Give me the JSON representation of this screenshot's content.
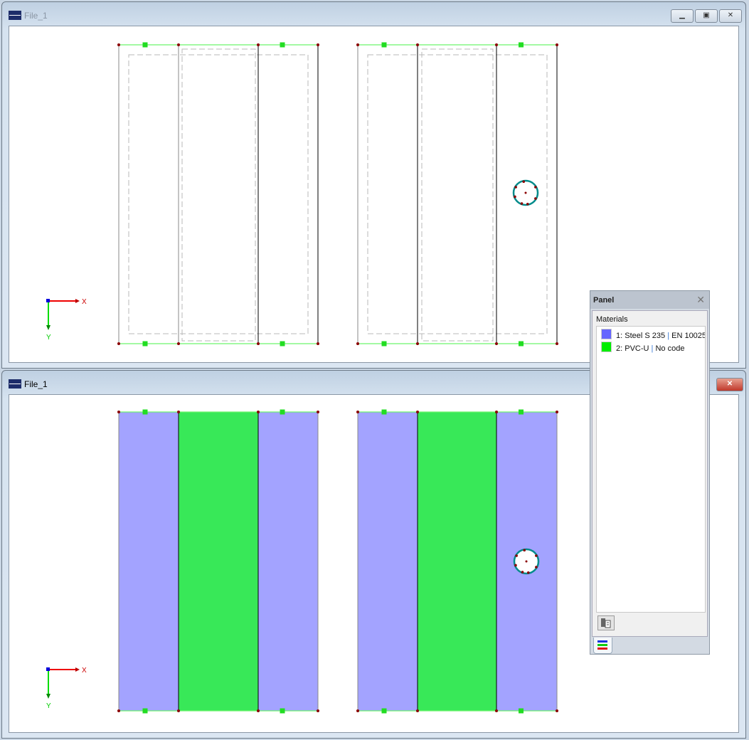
{
  "windows": [
    {
      "title": "File_1",
      "view": "wireframe"
    },
    {
      "title": "File_1",
      "view": "materials"
    }
  ],
  "window_buttons": {
    "minimize": "minimize-icon",
    "restore": "restore-icon",
    "close": "close-icon"
  },
  "axes": {
    "x_label": "X",
    "y_label": "Y"
  },
  "panel": {
    "title": "Panel",
    "section_label": "Materials",
    "materials": [
      {
        "id": "1:",
        "name": "Steel S 235",
        "code": "EN 10025",
        "color": "#6666ff"
      },
      {
        "id": "2:",
        "name": "PVC-U",
        "code": "No code",
        "color": "#00ee00"
      }
    ],
    "separator": "|"
  },
  "colors": {
    "steel_fill": "#a3a3ff",
    "pvc_fill": "#38e858",
    "edge_green": "#6cf56c",
    "node": "#8b0000",
    "circle": "#008b8b"
  }
}
